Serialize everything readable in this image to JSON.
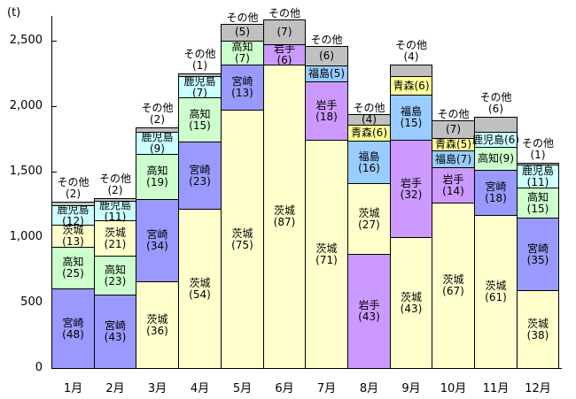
{
  "unit_label": "(t)",
  "chart_data": {
    "type": "bar",
    "stacked": true,
    "title": "",
    "ylabel": "(t)",
    "ylim": [
      0,
      2700
    ],
    "grid": false,
    "legend": "none (labels drawn inside segments)",
    "y_ticks": [
      0,
      500,
      1000,
      1500,
      2000,
      2500
    ],
    "y_tick_labels": [
      "0",
      "500",
      "1,000",
      "1,500",
      "2,000",
      "2,500"
    ],
    "categories": [
      "1月",
      "2月",
      "3月",
      "4月",
      "5月",
      "6月",
      "7月",
      "8月",
      "9月",
      "10月",
      "11月",
      "12月"
    ],
    "colors": {
      "宮崎": "#9999FF",
      "茨城": "#FFFFCC",
      "高知": "#CCFFCC",
      "鹿児島": "#CCFFFF",
      "岩手": "#CC99FF",
      "福島": "#99CCFF",
      "青森": "#FFFF99",
      "その他": "#C0C0C0"
    },
    "months": [
      {
        "label": "1月",
        "total_t": 1270,
        "note_style": "above",
        "segments": [
          {
            "name": "宮崎",
            "value": 48
          },
          {
            "name": "高知",
            "value": 25
          },
          {
            "name": "茨城",
            "value": 13
          },
          {
            "name": "鹿児島",
            "value": 12
          },
          {
            "name": "その他",
            "value": 2
          }
        ]
      },
      {
        "label": "2月",
        "total_t": 1300,
        "note_style": "above",
        "segments": [
          {
            "name": "宮崎",
            "value": 43
          },
          {
            "name": "高知",
            "value": 23
          },
          {
            "name": "茨城",
            "value": 21
          },
          {
            "name": "鹿児島",
            "value": 11
          },
          {
            "name": "その他",
            "value": 2
          }
        ]
      },
      {
        "label": "3月",
        "total_t": 1840,
        "note_style": "above",
        "segments": [
          {
            "name": "茨城",
            "value": 36
          },
          {
            "name": "宮崎",
            "value": 34
          },
          {
            "name": "高知",
            "value": 19
          },
          {
            "name": "鹿児島",
            "value": 9
          },
          {
            "name": "その他",
            "value": 2
          }
        ]
      },
      {
        "label": "4月",
        "total_t": 2250,
        "note_style": "above",
        "segments": [
          {
            "name": "茨城",
            "value": 54
          },
          {
            "name": "宮崎",
            "value": 23
          },
          {
            "name": "高知",
            "value": 15
          },
          {
            "name": "鹿児島",
            "value": 7
          },
          {
            "name": "その他",
            "value": 1
          }
        ]
      },
      {
        "label": "5月",
        "total_t": 2630,
        "note_style": "split",
        "segments": [
          {
            "name": "茨城",
            "value": 75
          },
          {
            "name": "宮崎",
            "value": 13
          },
          {
            "name": "高知",
            "value": 7
          },
          {
            "name": "その他",
            "value": 5
          }
        ]
      },
      {
        "label": "6月",
        "total_t": 2660,
        "note_style": "split",
        "segments": [
          {
            "name": "茨城",
            "value": 87
          },
          {
            "name": "岩手",
            "value": 6
          },
          {
            "name": "その他",
            "value": 7
          }
        ]
      },
      {
        "label": "7月",
        "total_t": 2460,
        "note_style": "split",
        "segments": [
          {
            "name": "茨城",
            "value": 71
          },
          {
            "name": "岩手",
            "value": 18
          },
          {
            "name": "福島",
            "value": 5,
            "inline": true
          },
          {
            "name": "その他",
            "value": 6
          }
        ]
      },
      {
        "label": "8月",
        "total_t": 1940,
        "note_style": "split",
        "segments": [
          {
            "name": "岩手",
            "value": 43
          },
          {
            "name": "茨城",
            "value": 27
          },
          {
            "name": "福島",
            "value": 16
          },
          {
            "name": "青森",
            "value": 6,
            "inline": true
          },
          {
            "name": "その他",
            "value": 4
          }
        ]
      },
      {
        "label": "9月",
        "total_t": 2320,
        "note_style": "above",
        "segments": [
          {
            "name": "茨城",
            "value": 43
          },
          {
            "name": "岩手",
            "value": 32
          },
          {
            "name": "福島",
            "value": 15
          },
          {
            "name": "青森",
            "value": 6,
            "inline": true
          },
          {
            "name": "その他",
            "value": 4
          }
        ]
      },
      {
        "label": "10月",
        "total_t": 1890,
        "note_style": "split",
        "segments": [
          {
            "name": "茨城",
            "value": 67
          },
          {
            "name": "岩手",
            "value": 14
          },
          {
            "name": "福島",
            "value": 7,
            "inline": true
          },
          {
            "name": "青森",
            "value": 5,
            "inline": true
          },
          {
            "name": "その他",
            "value": 7
          }
        ]
      },
      {
        "label": "11月",
        "total_t": 1920,
        "note_style": "above",
        "segments": [
          {
            "name": "茨城",
            "value": 61
          },
          {
            "name": "宮崎",
            "value": 18
          },
          {
            "name": "高知",
            "value": 9,
            "inline": true
          },
          {
            "name": "鹿児島",
            "value": 6,
            "inline": true
          },
          {
            "name": "その他",
            "value": 6
          }
        ]
      },
      {
        "label": "12月",
        "total_t": 1570,
        "note_style": "above",
        "segments": [
          {
            "name": "茨城",
            "value": 38
          },
          {
            "name": "宮崎",
            "value": 35
          },
          {
            "name": "高知",
            "value": 15
          },
          {
            "name": "鹿児島",
            "value": 11
          },
          {
            "name": "その他",
            "value": 1
          }
        ]
      }
    ]
  }
}
